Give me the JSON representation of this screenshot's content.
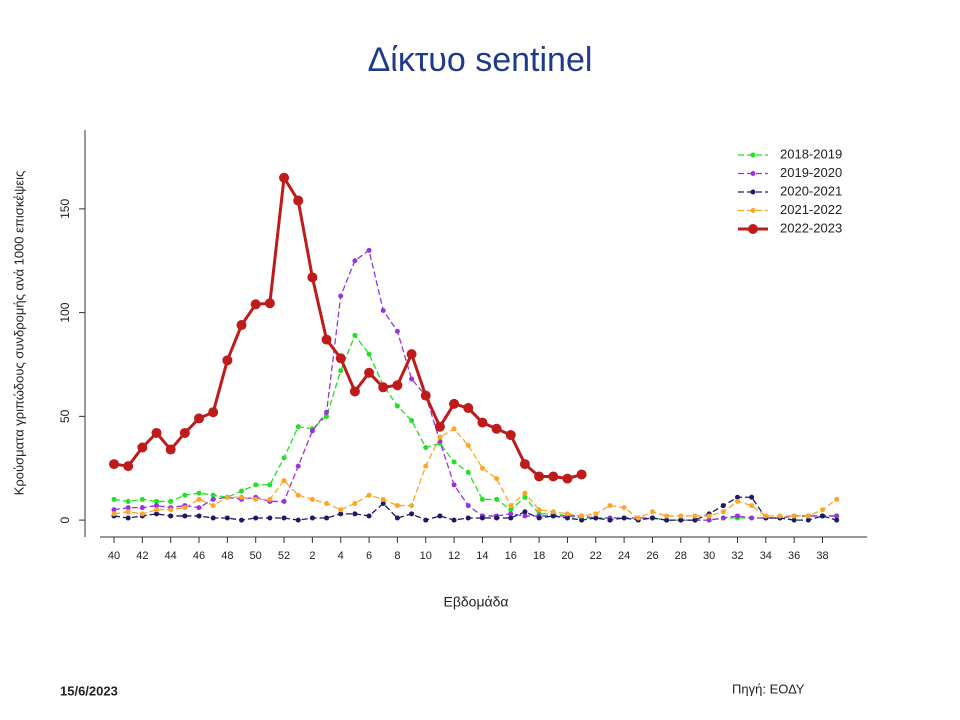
{
  "chart_data": {
    "type": "line",
    "title": "Δίκτυο sentinel",
    "ylabel": "Κρούσματα γριπώδους συνδρομής ανά 1000 επισκέψεις",
    "xlabel": "Εβδομάδα",
    "date": "15/6/2023",
    "source": "Πηγή: ΕΟΔΥ",
    "categories": [
      "40",
      null,
      "42",
      null,
      "44",
      null,
      "46",
      null,
      "48",
      null,
      "50",
      null,
      "52",
      null,
      "2",
      null,
      "4",
      null,
      "6",
      null,
      "8",
      null,
      "10",
      null,
      "12",
      null,
      "14",
      null,
      "16",
      null,
      "18",
      null,
      "20",
      null,
      "22",
      null,
      "24",
      null,
      "26",
      null,
      "28",
      null,
      "30",
      null,
      "32",
      null,
      "34",
      null,
      "36",
      null,
      "38",
      null
    ],
    "ylim": [
      -12,
      188
    ],
    "yticks": [
      0,
      50,
      100,
      150
    ],
    "legend": "upper right",
    "series": [
      {
        "name": "2018-2019",
        "color": "#22e022",
        "line_style": "dashed",
        "values": [
          10,
          9,
          10,
          9,
          9,
          12,
          13,
          12,
          11,
          14,
          17,
          17,
          30,
          45,
          44,
          50,
          72,
          89,
          80,
          65,
          55,
          48,
          35,
          37,
          28,
          23,
          10,
          10,
          5,
          11,
          3,
          3,
          2,
          1,
          1,
          1,
          1,
          1,
          1,
          0,
          0,
          0,
          0,
          1,
          1,
          1,
          1,
          1,
          2,
          2,
          2,
          2
        ]
      },
      {
        "name": "2019-2020",
        "color": "#9933dd",
        "line_style": "dashed",
        "values": [
          5,
          6,
          6,
          7,
          6,
          7,
          6,
          10,
          11,
          10,
          11,
          9,
          9,
          26,
          43,
          52,
          108,
          125,
          130,
          101,
          91,
          68,
          60,
          38,
          17,
          7,
          2,
          2,
          3,
          2,
          2,
          2,
          2,
          2,
          1,
          1,
          1,
          1,
          1,
          0,
          0,
          0,
          0,
          1,
          2,
          1,
          1,
          1,
          2,
          2,
          2,
          2
        ]
      },
      {
        "name": "2020-2021",
        "color": "#1a1a66",
        "line_style": "dashed",
        "values": [
          2,
          1,
          2,
          3,
          2,
          2,
          2,
          1,
          1,
          0,
          1,
          1,
          1,
          0,
          1,
          1,
          3,
          3,
          2,
          8,
          1,
          3,
          0,
          2,
          0,
          1,
          1,
          1,
          1,
          4,
          1,
          2,
          1,
          0,
          1,
          0,
          1,
          0,
          1,
          0,
          0,
          0,
          3,
          7,
          11,
          11,
          1,
          1,
          0,
          0,
          2,
          0
        ]
      },
      {
        "name": "2021-2022",
        "color": "#ffa526",
        "line_style": "dashed",
        "values": [
          3,
          4,
          3,
          5,
          5,
          6,
          10,
          7,
          11,
          11,
          10,
          10,
          19,
          12,
          10,
          8,
          5,
          8,
          12,
          10,
          7,
          7,
          26,
          40,
          44,
          36,
          25,
          20,
          7,
          13,
          5,
          4,
          3,
          2,
          3,
          7,
          6,
          1,
          4,
          2,
          2,
          2,
          2,
          4,
          9,
          7,
          2,
          2,
          2,
          2,
          5,
          10
        ]
      },
      {
        "name": "2022-2023",
        "color": "#c01b1b",
        "line_style": "solid",
        "values": [
          27,
          26,
          35,
          42,
          34,
          42,
          49,
          52,
          77,
          94,
          104,
          104.5,
          165,
          154,
          117,
          87,
          78,
          62,
          71,
          64,
          65,
          80,
          60,
          45,
          56,
          54,
          47,
          44,
          41,
          27,
          21,
          21,
          20,
          22,
          null,
          null,
          null,
          null,
          null,
          null,
          null,
          null,
          null,
          null,
          null,
          null,
          null,
          null,
          null,
          null,
          null,
          null
        ]
      }
    ]
  }
}
